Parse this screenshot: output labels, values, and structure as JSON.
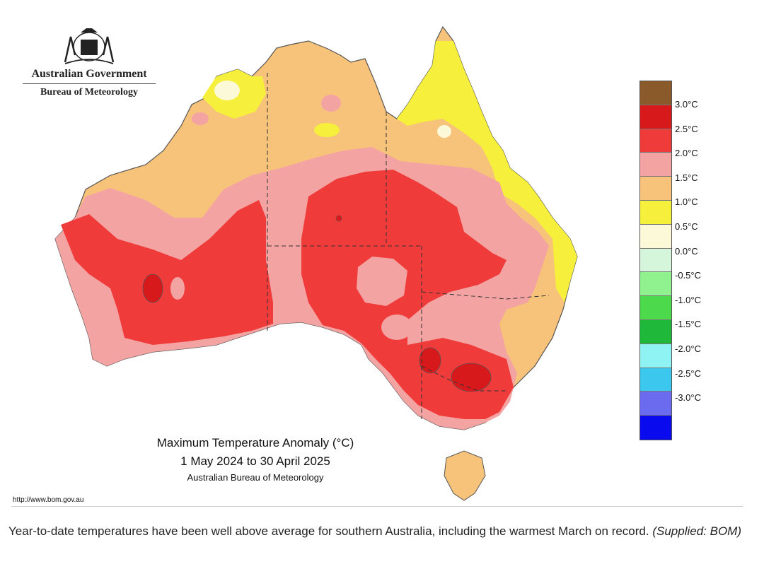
{
  "logo": {
    "org_name": "Australian Government",
    "agency_name": "Bureau of Meteorology"
  },
  "map": {
    "title_line1": "Maximum Temperature Anomaly (°C)",
    "title_line2": "1 May 2024 to 30 April 2025",
    "title_line3": "Australian Bureau of Meteorology",
    "url": "http://www.bom.gov.au"
  },
  "legend": {
    "items": [
      {
        "label": "3.0°C",
        "color": "#8b5a2b"
      },
      {
        "label": "2.5°C",
        "color": "#d7191c"
      },
      {
        "label": "2.0°C",
        "color": "#f03b3b"
      },
      {
        "label": "1.5°C",
        "color": "#f4a3a3"
      },
      {
        "label": "1.0°C",
        "color": "#f7c27a"
      },
      {
        "label": "0.5°C",
        "color": "#f6f03c"
      },
      {
        "label": "0.0°C",
        "color": "#fbf9d8"
      },
      {
        "label": "-0.5°C",
        "color": "#d6f6dc"
      },
      {
        "label": "-1.0°C",
        "color": "#8ff28f"
      },
      {
        "label": "-1.5°C",
        "color": "#4cd94c"
      },
      {
        "label": "-2.0°C",
        "color": "#1fb83a"
      },
      {
        "label": "-2.5°C",
        "color": "#8ff3f3"
      },
      {
        "label": "-3.0°C",
        "color": "#3cc7ee"
      }
    ],
    "extra_colors": [
      "#6b6bef",
      "#0a0aef"
    ]
  },
  "caption": {
    "text": "Year-to-date temperatures have been well above average for southern Australia, including the warmest March on record.",
    "credit": "(Supplied: BOM)"
  }
}
